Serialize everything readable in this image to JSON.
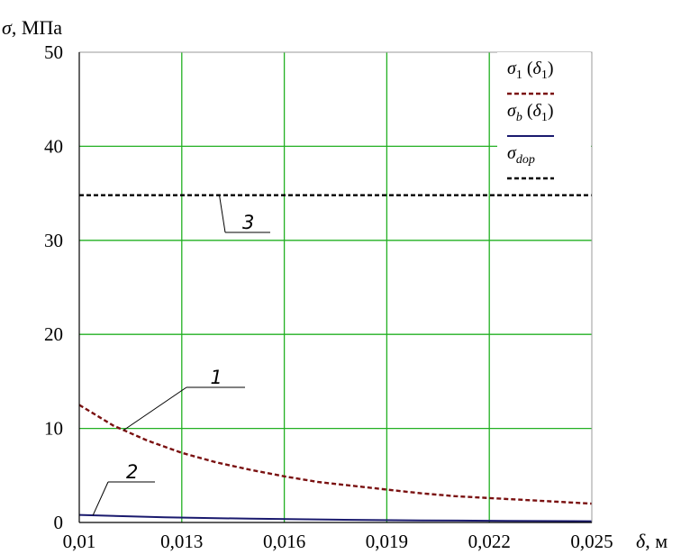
{
  "chart_data": {
    "type": "line",
    "title": "",
    "ylabel_symbol": "σ",
    "ylabel_unit": ", МПа",
    "xlabel_symbol": "δ",
    "xlabel_unit": ", м",
    "xlim": [
      0.01,
      0.025
    ],
    "ylim": [
      0,
      50
    ],
    "x_ticks": [
      0.01,
      0.013,
      0.016,
      0.019,
      0.022,
      0.025
    ],
    "x_tick_labels": [
      "0,01",
      "0,013",
      "0,016",
      "0,019",
      "0,022",
      "0,025"
    ],
    "y_ticks": [
      0,
      10,
      20,
      30,
      40,
      50
    ],
    "y_tick_labels": [
      "0",
      "10",
      "20",
      "30",
      "40",
      "50"
    ],
    "grid": true,
    "grid_color": "#22b022",
    "legend_placement": "top-right",
    "series": [
      {
        "legend_main": "σ",
        "legend_sub": "1",
        "legend_arg": " (δ",
        "legend_arg_sub": "1",
        "legend_close": ")",
        "curve_label": "1",
        "color": "#7a1010",
        "style": "dashed",
        "x": [
          0.01,
          0.011,
          0.012,
          0.013,
          0.014,
          0.015,
          0.016,
          0.017,
          0.018,
          0.019,
          0.02,
          0.021,
          0.022,
          0.023,
          0.024,
          0.025
        ],
        "y": [
          12.5,
          10.3,
          8.7,
          7.4,
          6.4,
          5.6,
          4.9,
          4.3,
          3.9,
          3.5,
          3.1,
          2.8,
          2.6,
          2.4,
          2.2,
          2.0
        ]
      },
      {
        "legend_main": "σ",
        "legend_sub": "b",
        "legend_arg": " (δ",
        "legend_arg_sub": "1",
        "legend_close": ")",
        "curve_label": "2",
        "color": "#1a1a6e",
        "style": "solid",
        "x": [
          0.01,
          0.0125,
          0.015,
          0.0175,
          0.02,
          0.0225,
          0.025
        ],
        "y": [
          0.8,
          0.55,
          0.4,
          0.3,
          0.22,
          0.17,
          0.13
        ]
      },
      {
        "legend_main": "σ",
        "legend_sub": "dop",
        "curve_label": "3",
        "color": "#000000",
        "style": "dashed",
        "x": [
          0.01,
          0.025
        ],
        "y": [
          34.8,
          34.8
        ]
      }
    ]
  }
}
